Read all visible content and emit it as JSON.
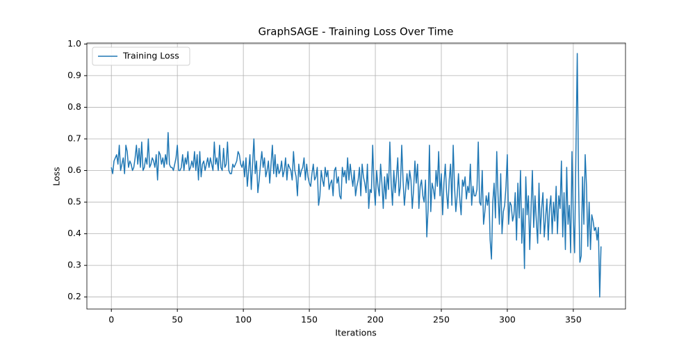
{
  "chart_data": {
    "type": "line",
    "title": "GraphSAGE - Training Loss Over Time",
    "xlabel": "Iterations",
    "ylabel": "Loss",
    "x": [
      0,
      1,
      2,
      3,
      4,
      5,
      6,
      7,
      8,
      9,
      10,
      11,
      12,
      13,
      14,
      15,
      16,
      17,
      18,
      19,
      20,
      21,
      22,
      23,
      24,
      25,
      26,
      27,
      28,
      29,
      30,
      31,
      32,
      33,
      34,
      35,
      36,
      37,
      38,
      39,
      40,
      41,
      42,
      43,
      44,
      45,
      46,
      47,
      48,
      49,
      50,
      51,
      52,
      53,
      54,
      55,
      56,
      57,
      58,
      59,
      60,
      61,
      62,
      63,
      64,
      65,
      66,
      67,
      68,
      69,
      70,
      71,
      72,
      73,
      74,
      75,
      76,
      77,
      78,
      79,
      80,
      81,
      82,
      83,
      84,
      85,
      86,
      87,
      88,
      89,
      90,
      91,
      92,
      93,
      94,
      95,
      96,
      97,
      98,
      99,
      100,
      101,
      102,
      103,
      104,
      105,
      106,
      107,
      108,
      109,
      110,
      111,
      112,
      113,
      114,
      115,
      116,
      117,
      118,
      119,
      120,
      121,
      122,
      123,
      124,
      125,
      126,
      127,
      128,
      129,
      130,
      131,
      132,
      133,
      134,
      135,
      136,
      137,
      138,
      139,
      140,
      141,
      142,
      143,
      144,
      145,
      146,
      147,
      148,
      149,
      150,
      151,
      152,
      153,
      154,
      155,
      156,
      157,
      158,
      159,
      160,
      161,
      162,
      163,
      164,
      165,
      166,
      167,
      168,
      169,
      170,
      171,
      172,
      173,
      174,
      175,
      176,
      177,
      178,
      179,
      180,
      181,
      182,
      183,
      184,
      185,
      186,
      187,
      188,
      189,
      190,
      191,
      192,
      193,
      194,
      195,
      196,
      197,
      198,
      199,
      200,
      201,
      202,
      203,
      204,
      205,
      206,
      207,
      208,
      209,
      210,
      211,
      212,
      213,
      214,
      215,
      216,
      217,
      218,
      219,
      220,
      221,
      222,
      223,
      224,
      225,
      226,
      227,
      228,
      229,
      230,
      231,
      232,
      233,
      234,
      235,
      236,
      237,
      238,
      239,
      240,
      241,
      242,
      243,
      244,
      245,
      246,
      247,
      248,
      249,
      250,
      251,
      252,
      253,
      254,
      255,
      256,
      257,
      258,
      259,
      260,
      261,
      262,
      263,
      264,
      265,
      266,
      267,
      268,
      269,
      270,
      271,
      272,
      273,
      274,
      275,
      276,
      277,
      278,
      279,
      280,
      281,
      282,
      283,
      284,
      285,
      286,
      287,
      288,
      289,
      290,
      291,
      292,
      293,
      294,
      295,
      296,
      297,
      298,
      299,
      300,
      301,
      302,
      303,
      304,
      305,
      306,
      307,
      308,
      309,
      310,
      311,
      312,
      313,
      314,
      315,
      316,
      317,
      318,
      319,
      320,
      321,
      322,
      323,
      324,
      325,
      326,
      327,
      328,
      329,
      330,
      331,
      332,
      333,
      334,
      335,
      336,
      337,
      338,
      339,
      340,
      341,
      342,
      343,
      344,
      345,
      346,
      347,
      348,
      349,
      350,
      351,
      352,
      353,
      354,
      355,
      356,
      357,
      358,
      359,
      360,
      361,
      362,
      363,
      364,
      365,
      366,
      367,
      368,
      369,
      370,
      371
    ],
    "series": [
      {
        "name": "Training Loss",
        "color": "#1f77b4",
        "values": [
          0.61,
          0.59,
          0.63,
          0.64,
          0.65,
          0.62,
          0.68,
          0.6,
          0.62,
          0.64,
          0.59,
          0.68,
          0.66,
          0.61,
          0.63,
          0.62,
          0.6,
          0.61,
          0.64,
          0.68,
          0.62,
          0.67,
          0.61,
          0.69,
          0.6,
          0.61,
          0.64,
          0.62,
          0.7,
          0.61,
          0.62,
          0.64,
          0.63,
          0.61,
          0.65,
          0.57,
          0.66,
          0.65,
          0.62,
          0.64,
          0.61,
          0.65,
          0.62,
          0.72,
          0.62,
          0.61,
          0.61,
          0.6,
          0.62,
          0.64,
          0.68,
          0.6,
          0.6,
          0.61,
          0.65,
          0.6,
          0.64,
          0.62,
          0.66,
          0.6,
          0.61,
          0.63,
          0.61,
          0.66,
          0.6,
          0.65,
          0.57,
          0.66,
          0.58,
          0.62,
          0.63,
          0.6,
          0.62,
          0.64,
          0.61,
          0.64,
          0.62,
          0.6,
          0.69,
          0.62,
          0.64,
          0.6,
          0.68,
          0.61,
          0.6,
          0.67,
          0.61,
          0.62,
          0.69,
          0.6,
          0.59,
          0.59,
          0.62,
          0.61,
          0.62,
          0.63,
          0.66,
          0.65,
          0.62,
          0.61,
          0.63,
          0.58,
          0.64,
          0.55,
          0.6,
          0.65,
          0.54,
          0.62,
          0.7,
          0.59,
          0.63,
          0.53,
          0.57,
          0.62,
          0.66,
          0.61,
          0.64,
          0.58,
          0.6,
          0.63,
          0.56,
          0.62,
          0.68,
          0.59,
          0.65,
          0.58,
          0.62,
          0.59,
          0.6,
          0.63,
          0.58,
          0.6,
          0.64,
          0.57,
          0.62,
          0.61,
          0.6,
          0.57,
          0.66,
          0.6,
          0.58,
          0.52,
          0.62,
          0.58,
          0.6,
          0.61,
          0.64,
          0.57,
          0.62,
          0.58,
          0.56,
          0.55,
          0.59,
          0.62,
          0.57,
          0.58,
          0.61,
          0.49,
          0.52,
          0.6,
          0.57,
          0.55,
          0.61,
          0.58,
          0.6,
          0.54,
          0.56,
          0.57,
          0.52,
          0.6,
          0.61,
          0.56,
          0.58,
          0.52,
          0.51,
          0.61,
          0.58,
          0.6,
          0.56,
          0.64,
          0.57,
          0.62,
          0.58,
          0.55,
          0.6,
          0.52,
          0.55,
          0.57,
          0.61,
          0.52,
          0.62,
          0.58,
          0.56,
          0.53,
          0.62,
          0.48,
          0.54,
          0.53,
          0.68,
          0.55,
          0.49,
          0.6,
          0.55,
          0.52,
          0.62,
          0.56,
          0.48,
          0.58,
          0.51,
          0.59,
          0.54,
          0.69,
          0.56,
          0.49,
          0.6,
          0.53,
          0.58,
          0.64,
          0.52,
          0.55,
          0.68,
          0.57,
          0.49,
          0.54,
          0.59,
          0.54,
          0.6,
          0.57,
          0.48,
          0.54,
          0.63,
          0.56,
          0.62,
          0.48,
          0.55,
          0.57,
          0.52,
          0.5,
          0.57,
          0.39,
          0.48,
          0.68,
          0.47,
          0.56,
          0.54,
          0.51,
          0.6,
          0.55,
          0.66,
          0.52,
          0.59,
          0.46,
          0.56,
          0.62,
          0.53,
          0.48,
          0.57,
          0.62,
          0.49,
          0.68,
          0.55,
          0.47,
          0.52,
          0.59,
          0.51,
          0.46,
          0.57,
          0.55,
          0.58,
          0.51,
          0.55,
          0.53,
          0.62,
          0.49,
          0.55,
          0.52,
          0.52,
          0.54,
          0.69,
          0.5,
          0.49,
          0.6,
          0.43,
          0.47,
          0.52,
          0.49,
          0.53,
          0.38,
          0.32,
          0.5,
          0.56,
          0.45,
          0.66,
          0.52,
          0.43,
          0.59,
          0.4,
          0.47,
          0.49,
          0.55,
          0.65,
          0.43,
          0.5,
          0.49,
          0.44,
          0.46,
          0.53,
          0.38,
          0.56,
          0.45,
          0.6,
          0.37,
          0.48,
          0.29,
          0.58,
          0.46,
          0.52,
          0.35,
          0.48,
          0.6,
          0.42,
          0.52,
          0.44,
          0.37,
          0.56,
          0.4,
          0.48,
          0.53,
          0.39,
          0.45,
          0.51,
          0.38,
          0.48,
          0.52,
          0.4,
          0.5,
          0.44,
          0.55,
          0.4,
          0.52,
          0.48,
          0.63,
          0.39,
          0.53,
          0.35,
          0.61,
          0.43,
          0.49,
          0.34,
          0.66,
          0.45,
          0.34,
          0.66,
          0.97,
          0.56,
          0.31,
          0.33,
          0.58,
          0.43,
          0.65,
          0.55,
          0.36,
          0.5,
          0.35,
          0.46,
          0.44,
          0.41,
          0.42,
          0.38,
          0.42,
          0.2,
          0.36
        ]
      }
    ],
    "xlim": [
      -18.55,
      389.55
    ],
    "xticks": [
      0,
      50,
      100,
      150,
      200,
      250,
      300,
      350
    ],
    "ylim": [
      0.162,
      1.003
    ],
    "yticks": [
      0.2,
      0.3,
      0.4,
      0.5,
      0.6,
      0.7,
      0.8,
      0.9,
      {
        "value": 1.0,
        "label": "1.0"
      }
    ],
    "grid": true,
    "legend": "upper left"
  }
}
